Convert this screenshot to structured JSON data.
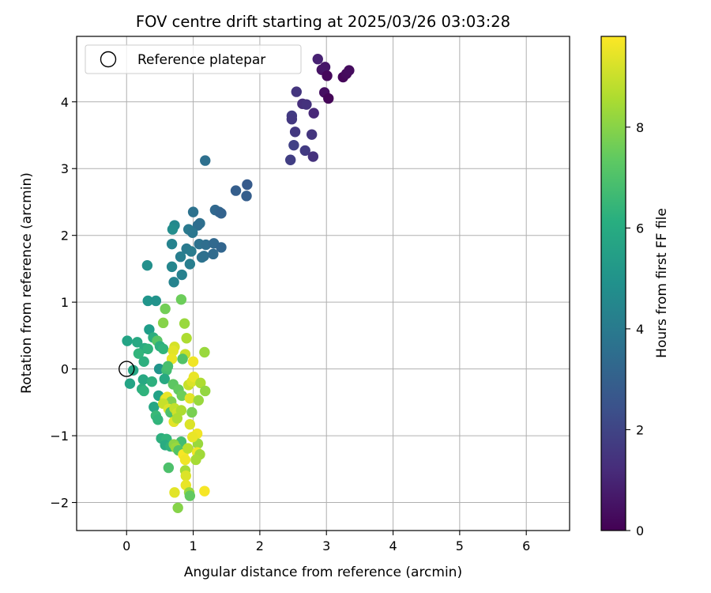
{
  "chart_data": {
    "type": "scatter",
    "title": "FOV centre drift starting at 2025/03/26 03:03:28",
    "xlabel": "Angular distance from reference (arcmin)",
    "ylabel": "Rotation from reference (arcmin)",
    "xlim": [
      -0.75,
      6.65
    ],
    "ylim": [
      -2.42,
      4.98
    ],
    "x_ticks": [
      0,
      1,
      2,
      3,
      4,
      5,
      6
    ],
    "y_ticks": [
      -2,
      -1,
      0,
      1,
      2,
      3,
      4
    ],
    "grid": true,
    "legend": {
      "position": "top-left",
      "entries": [
        "Reference platepar"
      ]
    },
    "reference_point": {
      "x": 0,
      "y": 0,
      "label": "Reference platepar"
    },
    "colorbar": {
      "label": "Hours from first FF file",
      "colormap": "viridis",
      "range": [
        0,
        9.8
      ],
      "ticks": [
        0,
        2,
        4,
        6,
        8
      ]
    },
    "points": [
      {
        "x": 2.87,
        "y": 4.64,
        "c": 0.9
      },
      {
        "x": 2.93,
        "y": 4.48,
        "c": 0.5
      },
      {
        "x": 2.98,
        "y": 4.52,
        "c": 0.6
      },
      {
        "x": 3.01,
        "y": 4.39,
        "c": 0.2
      },
      {
        "x": 3.25,
        "y": 4.37,
        "c": 0.15
      },
      {
        "x": 3.3,
        "y": 4.42,
        "c": 0.25
      },
      {
        "x": 3.34,
        "y": 4.47,
        "c": 0.3
      },
      {
        "x": 2.97,
        "y": 4.14,
        "c": 0.4
      },
      {
        "x": 3.03,
        "y": 4.05,
        "c": 0.1
      },
      {
        "x": 2.55,
        "y": 4.15,
        "c": 1.5
      },
      {
        "x": 2.64,
        "y": 3.97,
        "c": 1.3
      },
      {
        "x": 2.7,
        "y": 3.96,
        "c": 1.4
      },
      {
        "x": 2.48,
        "y": 3.79,
        "c": 1.7
      },
      {
        "x": 2.48,
        "y": 3.74,
        "c": 1.6
      },
      {
        "x": 2.81,
        "y": 3.83,
        "c": 1.1
      },
      {
        "x": 2.53,
        "y": 3.55,
        "c": 1.6
      },
      {
        "x": 2.78,
        "y": 3.51,
        "c": 1.5
      },
      {
        "x": 2.51,
        "y": 3.35,
        "c": 1.9
      },
      {
        "x": 2.68,
        "y": 3.27,
        "c": 1.7
      },
      {
        "x": 2.8,
        "y": 3.18,
        "c": 1.4
      },
      {
        "x": 2.46,
        "y": 3.13,
        "c": 1.8
      },
      {
        "x": 1.18,
        "y": 3.12,
        "c": 3.6
      },
      {
        "x": 1.64,
        "y": 2.67,
        "c": 2.9
      },
      {
        "x": 1.81,
        "y": 2.76,
        "c": 2.8
      },
      {
        "x": 1.8,
        "y": 2.59,
        "c": 2.9
      },
      {
        "x": 1.33,
        "y": 2.38,
        "c": 3.3
      },
      {
        "x": 1.39,
        "y": 2.35,
        "c": 3.2
      },
      {
        "x": 1.42,
        "y": 2.33,
        "c": 3.1
      },
      {
        "x": 1.0,
        "y": 2.35,
        "c": 3.7
      },
      {
        "x": 1.1,
        "y": 2.18,
        "c": 3.6
      },
      {
        "x": 1.07,
        "y": 2.15,
        "c": 3.5
      },
      {
        "x": 0.72,
        "y": 2.15,
        "c": 4.6
      },
      {
        "x": 0.69,
        "y": 2.09,
        "c": 4.8
      },
      {
        "x": 0.93,
        "y": 2.09,
        "c": 4.0
      },
      {
        "x": 0.99,
        "y": 2.04,
        "c": 3.9
      },
      {
        "x": 0.68,
        "y": 1.87,
        "c": 4.4
      },
      {
        "x": 1.09,
        "y": 1.87,
        "c": 3.7
      },
      {
        "x": 1.19,
        "y": 1.86,
        "c": 3.5
      },
      {
        "x": 1.31,
        "y": 1.88,
        "c": 3.3
      },
      {
        "x": 1.42,
        "y": 1.82,
        "c": 3.2
      },
      {
        "x": 0.9,
        "y": 1.8,
        "c": 4.0
      },
      {
        "x": 0.97,
        "y": 1.76,
        "c": 4.1
      },
      {
        "x": 0.81,
        "y": 1.68,
        "c": 4.2
      },
      {
        "x": 1.13,
        "y": 1.67,
        "c": 3.8
      },
      {
        "x": 1.16,
        "y": 1.69,
        "c": 3.6
      },
      {
        "x": 1.3,
        "y": 1.72,
        "c": 3.4
      },
      {
        "x": 0.31,
        "y": 1.55,
        "c": 4.9
      },
      {
        "x": 0.68,
        "y": 1.53,
        "c": 4.5
      },
      {
        "x": 0.95,
        "y": 1.57,
        "c": 4.2
      },
      {
        "x": 0.83,
        "y": 1.41,
        "c": 4.3
      },
      {
        "x": 0.71,
        "y": 1.3,
        "c": 4.4
      },
      {
        "x": 0.32,
        "y": 1.02,
        "c": 5.1
      },
      {
        "x": 0.44,
        "y": 1.02,
        "c": 5.0
      },
      {
        "x": 0.82,
        "y": 1.04,
        "c": 7.6
      },
      {
        "x": 0.58,
        "y": 0.9,
        "c": 7.7
      },
      {
        "x": 0.55,
        "y": 0.69,
        "c": 8.0
      },
      {
        "x": 0.87,
        "y": 0.68,
        "c": 8.3
      },
      {
        "x": 0.34,
        "y": 0.59,
        "c": 5.4
      },
      {
        "x": 0.01,
        "y": 0.42,
        "c": 5.7
      },
      {
        "x": 0.16,
        "y": 0.4,
        "c": 5.9
      },
      {
        "x": 0.4,
        "y": 0.47,
        "c": 6.1
      },
      {
        "x": 0.46,
        "y": 0.42,
        "c": 7.2
      },
      {
        "x": 0.9,
        "y": 0.46,
        "c": 8.6
      },
      {
        "x": 0.27,
        "y": 0.31,
        "c": 6.0
      },
      {
        "x": 0.32,
        "y": 0.3,
        "c": 6.3
      },
      {
        "x": 0.5,
        "y": 0.34,
        "c": 6.2
      },
      {
        "x": 0.55,
        "y": 0.3,
        "c": 6.4
      },
      {
        "x": 0.72,
        "y": 0.33,
        "c": 9.2
      },
      {
        "x": 0.7,
        "y": 0.27,
        "c": 9.4
      },
      {
        "x": 1.17,
        "y": 0.25,
        "c": 8.3
      },
      {
        "x": 0.88,
        "y": 0.22,
        "c": 9.0
      },
      {
        "x": 0.18,
        "y": 0.23,
        "c": 6.4
      },
      {
        "x": 0.26,
        "y": 0.11,
        "c": 6.2
      },
      {
        "x": 0.68,
        "y": 0.15,
        "c": 9.5
      },
      {
        "x": 0.84,
        "y": 0.15,
        "c": 7.1
      },
      {
        "x": 1.0,
        "y": 0.11,
        "c": 9.6
      },
      {
        "x": 0.1,
        "y": -0.02,
        "c": 5.8
      },
      {
        "x": 0.49,
        "y": 0.0,
        "c": 5.1
      },
      {
        "x": 0.6,
        "y": -0.02,
        "c": 6.8
      },
      {
        "x": 0.62,
        "y": 0.04,
        "c": 6.9
      },
      {
        "x": 0.25,
        "y": -0.16,
        "c": 5.9
      },
      {
        "x": 0.38,
        "y": -0.19,
        "c": 6.2
      },
      {
        "x": 0.05,
        "y": -0.22,
        "c": 5.7
      },
      {
        "x": 0.23,
        "y": -0.3,
        "c": 6.1
      },
      {
        "x": 0.26,
        "y": -0.33,
        "c": 6.3
      },
      {
        "x": 0.57,
        "y": -0.15,
        "c": 5.9
      },
      {
        "x": 0.7,
        "y": -0.23,
        "c": 7.3
      },
      {
        "x": 0.78,
        "y": -0.31,
        "c": 7.4
      },
      {
        "x": 0.93,
        "y": -0.24,
        "c": 9.0
      },
      {
        "x": 0.98,
        "y": -0.19,
        "c": 9.3
      },
      {
        "x": 1.01,
        "y": -0.12,
        "c": 9.5
      },
      {
        "x": 1.11,
        "y": -0.21,
        "c": 8.6
      },
      {
        "x": 1.18,
        "y": -0.33,
        "c": 8.2
      },
      {
        "x": 0.48,
        "y": -0.4,
        "c": 5.6
      },
      {
        "x": 0.58,
        "y": -0.45,
        "c": 9.3
      },
      {
        "x": 0.61,
        "y": -0.42,
        "c": 9.5
      },
      {
        "x": 0.67,
        "y": -0.49,
        "c": 7.9
      },
      {
        "x": 0.83,
        "y": -0.4,
        "c": 7.6
      },
      {
        "x": 0.95,
        "y": -0.44,
        "c": 9.4
      },
      {
        "x": 1.08,
        "y": -0.47,
        "c": 8.3
      },
      {
        "x": 0.41,
        "y": -0.57,
        "c": 5.8
      },
      {
        "x": 0.55,
        "y": -0.52,
        "c": 9.0
      },
      {
        "x": 0.63,
        "y": -0.6,
        "c": 9.3
      },
      {
        "x": 0.66,
        "y": -0.65,
        "c": 7.0
      },
      {
        "x": 0.72,
        "y": -0.59,
        "c": 8.9
      },
      {
        "x": 0.76,
        "y": -0.66,
        "c": 9.1
      },
      {
        "x": 0.82,
        "y": -0.62,
        "c": 8.6
      },
      {
        "x": 0.98,
        "y": -0.65,
        "c": 7.8
      },
      {
        "x": 0.44,
        "y": -0.7,
        "c": 6.6
      },
      {
        "x": 0.47,
        "y": -0.76,
        "c": 6.4
      },
      {
        "x": 0.71,
        "y": -0.79,
        "c": 9.4
      },
      {
        "x": 0.76,
        "y": -0.74,
        "c": 8.6
      },
      {
        "x": 0.95,
        "y": -0.83,
        "c": 9.3
      },
      {
        "x": 1.06,
        "y": -0.97,
        "c": 9.6
      },
      {
        "x": 1.07,
        "y": -1.12,
        "c": 8.3
      },
      {
        "x": 0.52,
        "y": -1.04,
        "c": 6.2
      },
      {
        "x": 0.6,
        "y": -1.05,
        "c": 6.4
      },
      {
        "x": 0.82,
        "y": -1.09,
        "c": 6.8
      },
      {
        "x": 0.99,
        "y": -1.02,
        "c": 9.5
      },
      {
        "x": 0.58,
        "y": -1.14,
        "c": 6.0
      },
      {
        "x": 0.66,
        "y": -1.16,
        "c": 6.3
      },
      {
        "x": 0.71,
        "y": -1.13,
        "c": 8.1
      },
      {
        "x": 0.74,
        "y": -1.18,
        "c": 8.3
      },
      {
        "x": 0.78,
        "y": -1.22,
        "c": 7.1
      },
      {
        "x": 0.85,
        "y": -1.28,
        "c": 9.7
      },
      {
        "x": 0.92,
        "y": -1.19,
        "c": 8.8
      },
      {
        "x": 1.06,
        "y": -1.25,
        "c": 9.6
      },
      {
        "x": 1.1,
        "y": -1.28,
        "c": 8.4
      },
      {
        "x": 1.04,
        "y": -1.36,
        "c": 8.5
      },
      {
        "x": 0.88,
        "y": -1.36,
        "c": 9.6
      },
      {
        "x": 0.63,
        "y": -1.48,
        "c": 7.0
      },
      {
        "x": 0.88,
        "y": -1.52,
        "c": 8.5
      },
      {
        "x": 0.89,
        "y": -1.6,
        "c": 9.3
      },
      {
        "x": 0.89,
        "y": -1.74,
        "c": 9.5
      },
      {
        "x": 0.72,
        "y": -1.85,
        "c": 9.4
      },
      {
        "x": 0.94,
        "y": -1.85,
        "c": 8.3
      },
      {
        "x": 0.95,
        "y": -1.9,
        "c": 7.4
      },
      {
        "x": 1.17,
        "y": -1.83,
        "c": 9.7
      },
      {
        "x": 0.77,
        "y": -2.08,
        "c": 8.0
      }
    ]
  }
}
